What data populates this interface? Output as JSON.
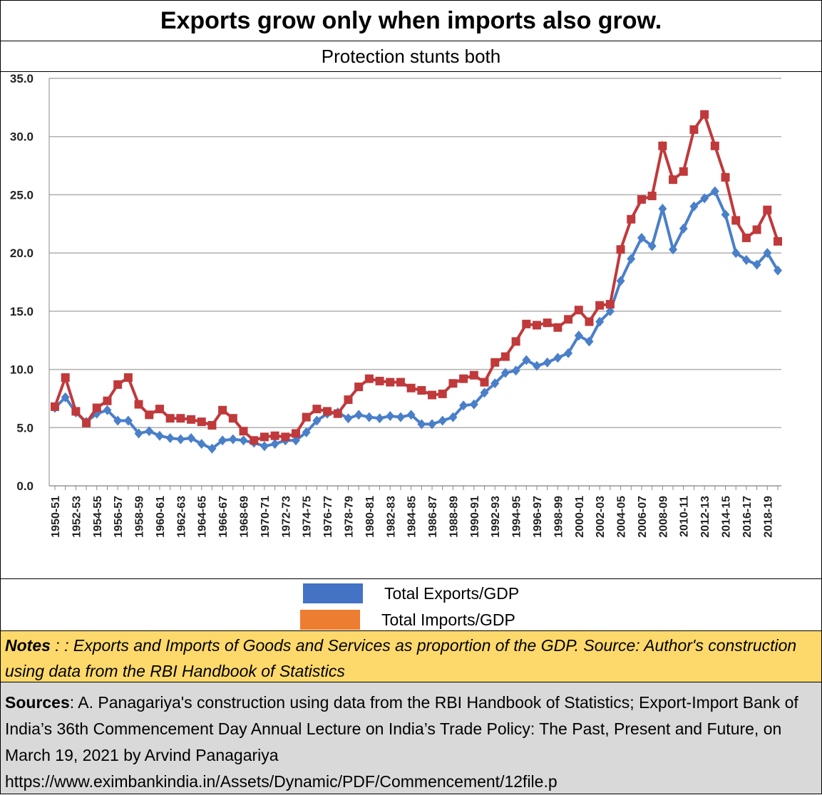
{
  "header": {
    "title": "Exports grow only when imports also grow.",
    "subtitle": "Protection stunts both"
  },
  "chart_data": {
    "type": "line",
    "categories": [
      "1950-51",
      null,
      "1952-53",
      null,
      "1954-55",
      null,
      "1956-57",
      null,
      "1958-59",
      null,
      "1960-61",
      null,
      "1962-63",
      null,
      "1964-65",
      null,
      "1966-67",
      null,
      "1968-69",
      null,
      "1970-71",
      null,
      "1972-73",
      null,
      "1974-75",
      null,
      "1976-77",
      null,
      "1978-79",
      null,
      "1980-81",
      null,
      "1982-83",
      null,
      "1984-85",
      null,
      "1986-87",
      null,
      "1988-89",
      null,
      "1990-91",
      null,
      "1992-93",
      null,
      "1994-95",
      null,
      "1996-97",
      null,
      "1998-99",
      null,
      "2000-01",
      null,
      "2002-03",
      null,
      "2004-05",
      null,
      "2006-07",
      null,
      "2008-09",
      null,
      "2010-11",
      null,
      "2012-13",
      null,
      "2014-15",
      null,
      "2016-17",
      null,
      "2018-19",
      null
    ],
    "series": [
      {
        "name": "Total Exports/GDP",
        "color": "#4a7fc9",
        "legend_color": "#4472c4",
        "marker": "diamond",
        "values": [
          6.7,
          7.6,
          6.3,
          5.5,
          6.2,
          6.5,
          5.6,
          5.6,
          4.5,
          4.7,
          4.3,
          4.1,
          4.0,
          4.1,
          3.6,
          3.2,
          3.9,
          4.0,
          3.9,
          3.7,
          3.4,
          3.6,
          3.9,
          3.9,
          4.6,
          5.6,
          6.2,
          6.3,
          5.8,
          6.1,
          5.9,
          5.8,
          6.0,
          5.9,
          6.1,
          5.3,
          5.3,
          5.6,
          5.9,
          6.9,
          7.0,
          8.0,
          8.8,
          9.7,
          9.9,
          10.8,
          10.3,
          10.6,
          11.0,
          11.4,
          12.9,
          12.4,
          14.1,
          15.0,
          17.6,
          19.5,
          21.3,
          20.6,
          23.8,
          20.3,
          22.1,
          24.0,
          24.7,
          25.3,
          23.3,
          20.0,
          19.4,
          19.0,
          20.0,
          18.5
        ]
      },
      {
        "name": "Total Imports/GDP",
        "color": "#c0393b",
        "legend_color": "#ed7d31",
        "marker": "square",
        "values": [
          6.8,
          9.3,
          6.4,
          5.4,
          6.7,
          7.3,
          8.7,
          9.3,
          7.0,
          6.1,
          6.6,
          5.8,
          5.8,
          5.7,
          5.5,
          5.2,
          6.5,
          5.8,
          4.7,
          3.9,
          4.2,
          4.3,
          4.2,
          4.5,
          5.9,
          6.6,
          6.4,
          6.2,
          7.4,
          8.5,
          9.2,
          9.0,
          8.9,
          8.9,
          8.4,
          8.2,
          7.8,
          7.9,
          8.8,
          9.2,
          9.5,
          8.9,
          10.6,
          11.1,
          12.4,
          13.9,
          13.8,
          14.0,
          13.6,
          14.3,
          15.1,
          14.1,
          15.5,
          15.6,
          20.3,
          22.9,
          24.6,
          24.9,
          29.2,
          26.3,
          27.0,
          30.6,
          31.9,
          29.2,
          26.5,
          22.8,
          21.3,
          22.0,
          23.7,
          21.0
        ]
      }
    ],
    "ylim": [
      0,
      35
    ],
    "yticks": [
      {
        "value": 0,
        "label": "0.0"
      },
      {
        "value": 5,
        "label": "5.0"
      },
      {
        "value": 10,
        "label": "10.0"
      },
      {
        "value": 15,
        "label": "15.0"
      },
      {
        "value": 20,
        "label": "20.0"
      },
      {
        "value": 25,
        "label": "25.0"
      },
      {
        "value": 30,
        "label": "30.0"
      },
      {
        "value": 35,
        "label": "35.0"
      }
    ],
    "grid": true
  },
  "notes": {
    "label": "Notes",
    "text": " : : Exports and Imports of Goods and Services as proportion of the GDP. Source: Author's construction using data from the RBI Handbook of Statistics"
  },
  "sources": {
    "label": "Sources",
    "text": ": A. Panagariya's construction using data from the RBI Handbook of Statistics; Export-Import Bank of India’s 36th Commencement Day Annual Lecture on India’s Trade Policy: The Past, Present and Future, on March 19, 2021 by Arvind Panagariya",
    "url": "https://www.eximbankindia.in/Assets/Dynamic/PDF/Commencement/12file.p"
  }
}
